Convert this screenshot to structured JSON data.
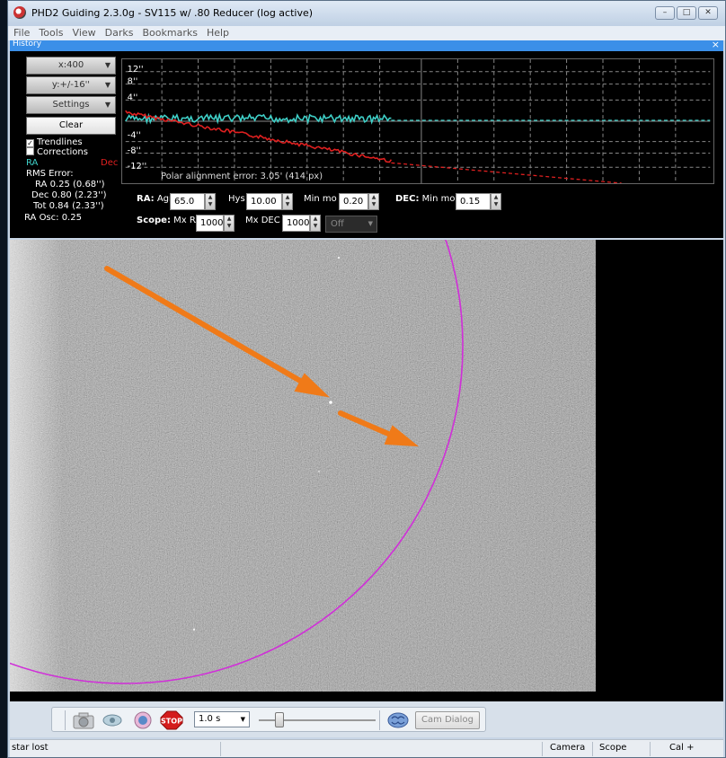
{
  "window": {
    "title": "PHD2 Guiding 2.3.0g - SV115 w/ .80 Reducer (log active)",
    "buttons": [
      "–",
      "□",
      "✕"
    ]
  },
  "menu": [
    "File",
    "Tools",
    "View",
    "Darks",
    "Bookmarks",
    "Help"
  ],
  "history": {
    "header": "History",
    "close": "×",
    "x_scale": "x:400",
    "y_scale": "y:+/-16''",
    "settings": "Settings",
    "clear": "Clear",
    "trendlines_label": "Trendlines",
    "trendlines_checked": true,
    "corrections_label": "Corrections",
    "corrections_checked": false,
    "ra_label": "RA",
    "dec_label": "Dec",
    "rms_title": "RMS Error:",
    "rms_ra": "RA 0.25 (0.68'')",
    "rms_dec": "Dec 0.80 (2.23'')",
    "rms_tot": "Tot 0.84 (2.33'')",
    "ra_osc": "RA Osc: 0.25",
    "polar_text": "Polar alignment error: 3.05' (414 px)",
    "ticks": [
      "12''",
      "8''",
      "4''",
      "-4''",
      "-8''",
      "-12''"
    ],
    "colors": {
      "ra": "#3fd0c8",
      "dec": "#e02020"
    }
  },
  "controls": {
    "ra_prefix": "RA:",
    "ra_agr_label": "Agr",
    "ra_agr_value": "65.0",
    "hys_label": "Hys",
    "hys_value": "10.00",
    "min_mo_label": "Min mo",
    "min_mo_value": "0.20",
    "dec_prefix": "DEC:",
    "dec_min_mo_label": "Min mo",
    "dec_min_mo_value": "0.15",
    "scope_prefix": "Scope:",
    "mx_ra_label": "Mx RA",
    "mx_ra_value": "1000",
    "mx_dec_label": "Mx DEC",
    "mx_dec_value": "1000",
    "dec_mode": "Off"
  },
  "toolbar": {
    "exposure": "1.0 s",
    "stop_label": "STOP",
    "cam_dialog": "Cam Dialog",
    "icons": [
      "camera-icon",
      "loop-icon",
      "guide-icon",
      "stop-icon",
      "brain-icon"
    ]
  },
  "status": {
    "message": "star lost",
    "camera": "Camera",
    "scope": "Scope",
    "cal": "Cal +"
  }
}
